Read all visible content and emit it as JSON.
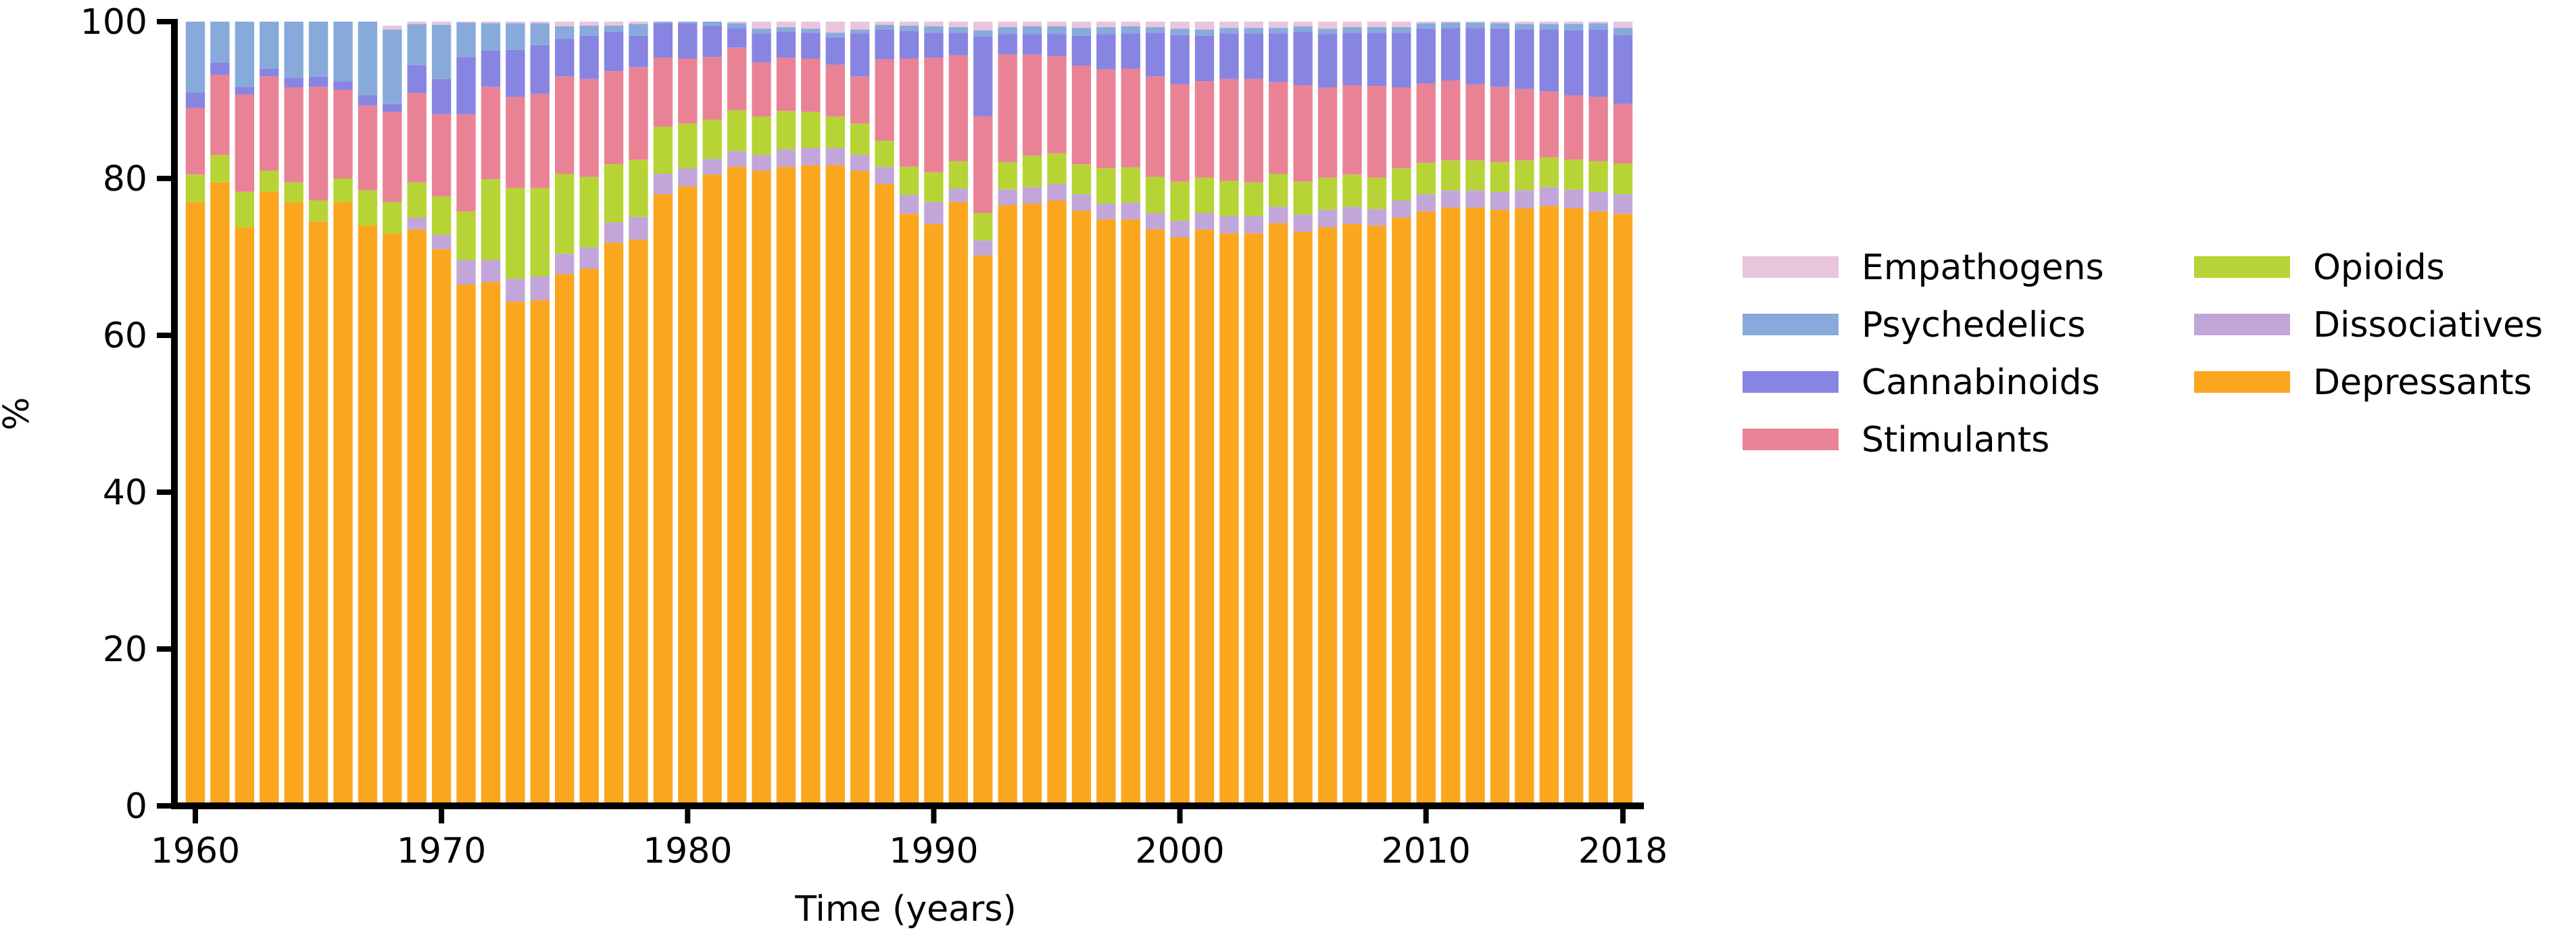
{
  "chart_data": {
    "type": "bar",
    "stacked": true,
    "percent": true,
    "xlabel": "Time (years)",
    "ylabel": "%",
    "ylim": [
      0,
      100
    ],
    "y_ticks": [
      0,
      20,
      40,
      60,
      80,
      100
    ],
    "x_tick_labels": [
      "1960",
      "1970",
      "1980",
      "1990",
      "2000",
      "2010",
      "2018"
    ],
    "categories": [
      1960,
      1961,
      1962,
      1963,
      1964,
      1965,
      1966,
      1967,
      1968,
      1969,
      1970,
      1971,
      1972,
      1973,
      1974,
      1975,
      1976,
      1977,
      1978,
      1979,
      1980,
      1981,
      1982,
      1983,
      1984,
      1985,
      1986,
      1987,
      1988,
      1989,
      1990,
      1991,
      1992,
      1993,
      1994,
      1995,
      1996,
      1997,
      1998,
      1999,
      2000,
      2001,
      2002,
      2003,
      2004,
      2005,
      2006,
      2007,
      2008,
      2009,
      2010,
      2011,
      2012,
      2013,
      2014,
      2015,
      2016,
      2017,
      2018
    ],
    "series": [
      {
        "name": "Depressants",
        "color": "#FBA61F",
        "values": [
          77,
          79.5,
          73.8,
          78.3,
          77,
          74.5,
          77,
          74,
          73,
          73.5,
          71,
          66.5,
          66.8,
          64.3,
          64.5,
          67.8,
          68.5,
          71.8,
          72.2,
          78,
          79,
          80.5,
          81.5,
          81,
          81.5,
          81.7,
          81.7,
          81,
          79.3,
          75.5,
          74.2,
          77,
          70.2,
          76.6,
          76.8,
          77.2,
          75.9,
          74.8,
          74.8,
          73.5,
          72.5,
          73.5,
          73,
          73,
          74.3,
          73.2,
          73.8,
          74.2,
          74,
          75,
          75.8,
          76.3,
          76.3,
          76,
          76.2,
          76.5,
          76.2,
          75.8,
          75.5
        ]
      },
      {
        "name": "Dissociatives",
        "color": "#C2A6DA",
        "values": [
          0,
          0,
          0,
          0,
          0,
          0,
          0,
          0,
          0,
          1.5,
          1.8,
          3.1,
          2.8,
          2.9,
          3,
          2.6,
          2.7,
          2.6,
          2.9,
          2.6,
          2.3,
          2,
          2,
          2,
          2.2,
          2.2,
          2.2,
          2,
          2.2,
          2.4,
          2.8,
          1.7,
          1.9,
          2,
          2.1,
          2.1,
          2.1,
          2,
          2.1,
          2.1,
          2.1,
          2.1,
          2.2,
          2.2,
          2.1,
          2.2,
          2.2,
          2.2,
          2.1,
          2.2,
          2.2,
          2.2,
          2.2,
          2.3,
          2.3,
          2.4,
          2.4,
          2.5,
          2.5
        ]
      },
      {
        "name": "Opioids",
        "color": "#B6D435",
        "values": [
          3.5,
          3.5,
          4.5,
          2.7,
          2.5,
          2.7,
          3,
          4.5,
          4,
          4.5,
          4.9,
          6.2,
          10.3,
          11.6,
          11.3,
          10.2,
          9,
          7.4,
          7.3,
          6,
          5.7,
          5,
          5.2,
          4.9,
          4.9,
          4.6,
          4,
          4,
          3.3,
          3.6,
          3.8,
          3.5,
          3.5,
          3.5,
          4,
          3.9,
          3.8,
          4.5,
          4.5,
          4.6,
          5,
          4.5,
          4.5,
          4.3,
          4.2,
          4.2,
          4.1,
          4.1,
          4,
          4.1,
          4,
          3.8,
          3.8,
          3.8,
          3.8,
          3.8,
          3.8,
          3.9,
          3.9
        ]
      },
      {
        "name": "Stimulants",
        "color": "#EA8295",
        "values": [
          8.5,
          10.2,
          12.4,
          12,
          12.1,
          14.5,
          11.3,
          10.8,
          11.5,
          11.4,
          10.5,
          12.4,
          11.8,
          11.6,
          12,
          12.4,
          12.5,
          11.9,
          11.8,
          8.8,
          8.3,
          8,
          8,
          6.9,
          6.8,
          6.8,
          6.6,
          6,
          10.4,
          13.8,
          14.6,
          13.5,
          12.3,
          13.7,
          12.9,
          12.4,
          12.6,
          12.6,
          12.6,
          12.8,
          12.4,
          12.3,
          13,
          13.2,
          11.7,
          12.3,
          11.5,
          11.4,
          11.7,
          10.3,
          10.1,
          10.2,
          9.7,
          9.6,
          9.1,
          8.4,
          8.2,
          8.2,
          7.6
        ]
      },
      {
        "name": "Cannabinoids",
        "color": "#8784E2",
        "values": [
          2,
          1.6,
          1,
          1,
          1.2,
          1.3,
          1.1,
          1.3,
          1,
          3.5,
          4.5,
          7.3,
          4.6,
          6,
          6.2,
          4.8,
          5.5,
          5,
          4,
          4.4,
          4.5,
          4,
          2.5,
          3.7,
          3.3,
          3.3,
          3.5,
          5.5,
          3.8,
          3.5,
          3.2,
          2.9,
          10.2,
          2.6,
          2.6,
          2.8,
          3.8,
          4.5,
          4.5,
          5.6,
          6.3,
          5.8,
          5.8,
          5.8,
          6.2,
          6.8,
          6.8,
          6.7,
          6.8,
          7,
          7,
          6.7,
          7.2,
          7.4,
          7.6,
          7.9,
          8.3,
          8.6,
          8.8
        ]
      },
      {
        "name": "Psychedelics",
        "color": "#88AADB",
        "values": [
          9,
          5.2,
          8.3,
          6,
          7.2,
          7,
          7.6,
          9.4,
          9.5,
          5.3,
          6.9,
          4.4,
          3.5,
          3.4,
          2.8,
          1.6,
          1.3,
          0.8,
          1.5,
          0.8,
          0.9,
          0.9,
          0.6,
          0.6,
          0.6,
          0.5,
          0.6,
          0.5,
          0.6,
          0.7,
          0.8,
          0.7,
          0.8,
          0.9,
          1,
          1,
          1,
          0.9,
          0.9,
          0.7,
          0.8,
          0.8,
          0.7,
          0.7,
          0.7,
          0.7,
          0.7,
          0.7,
          0.7,
          0.7,
          0.7,
          0.7,
          0.7,
          0.7,
          0.7,
          0.7,
          0.8,
          0.8,
          0.9
        ]
      },
      {
        "name": "Empathogens",
        "color": "#E8C5DD",
        "values": [
          0,
          0,
          0,
          0,
          0,
          0,
          0,
          0,
          0.5,
          0.4,
          0.4,
          0.1,
          0.2,
          0.2,
          0.2,
          0.6,
          0.5,
          0.5,
          0.3,
          0.4,
          0.3,
          0.6,
          0.2,
          0.9,
          0.7,
          0.9,
          1.4,
          1,
          0.4,
          0.5,
          0.6,
          0.7,
          1.1,
          0.7,
          0.6,
          0.6,
          0.8,
          0.7,
          0.6,
          0.7,
          0.9,
          1,
          0.8,
          0.8,
          0.8,
          0.6,
          0.9,
          0.7,
          0.7,
          0.7,
          0.2,
          0.1,
          0.1,
          0.2,
          0.3,
          0.3,
          0.3,
          0.2,
          0.8
        ]
      }
    ],
    "legend": {
      "placement": "right",
      "order": [
        "Empathogens",
        "Psychedelics",
        "Cannabinoids",
        "Stimulants",
        "Opioids",
        "Dissociatives",
        "Depressants"
      ]
    },
    "grid": false
  }
}
